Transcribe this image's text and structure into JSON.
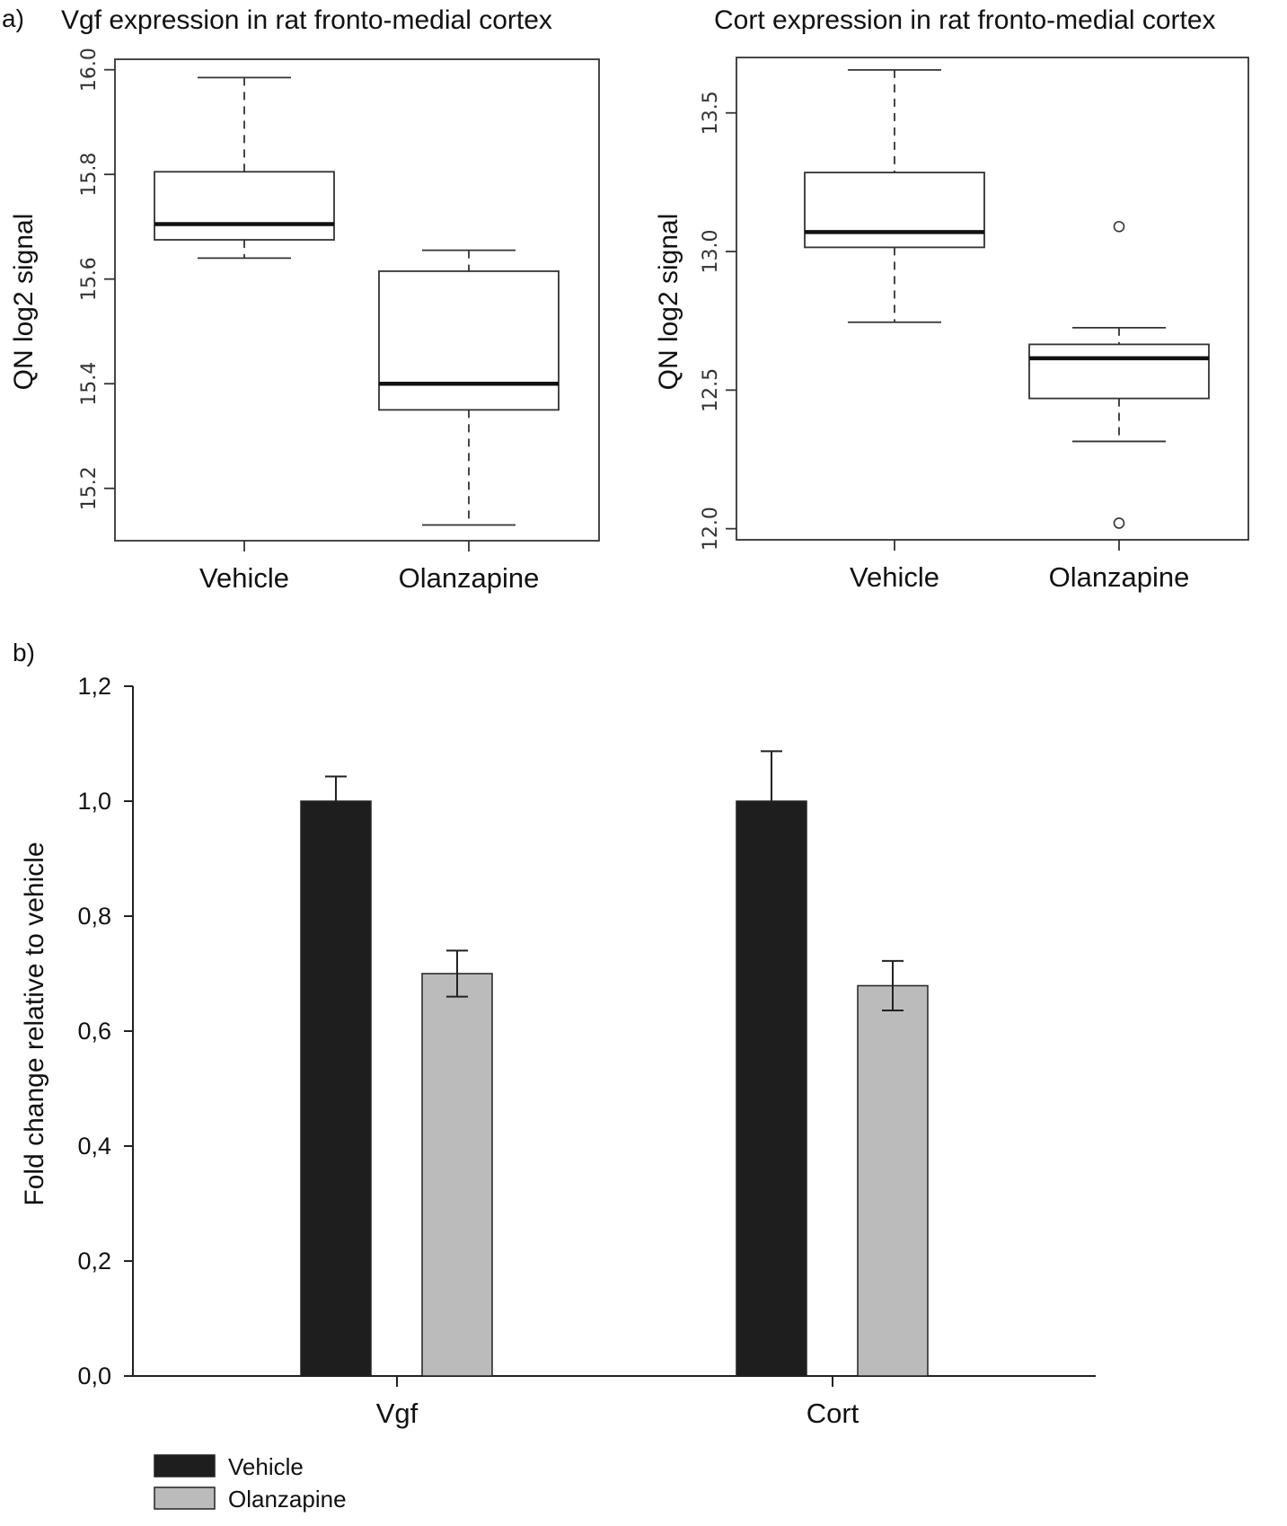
{
  "panel_labels": {
    "a": "a)",
    "b": "b)"
  },
  "colors": {
    "vehicle": "#1e1e1e",
    "olanzapine": "#bbbbbb",
    "axis": "#222222"
  },
  "chart_data": [
    {
      "type": "box",
      "id": "vgf_box",
      "title": "Vgf expression in rat fronto-medial cortex",
      "ylabel": "QN log2 signal",
      "ylim": [
        15.1,
        16.02
      ],
      "yticks": [
        15.2,
        15.4,
        15.6,
        15.8,
        16.0
      ],
      "ytick_labels": [
        "15.2",
        "15.4",
        "15.6",
        "15.8",
        "16.0"
      ],
      "categories": [
        "Vehicle",
        "Olanzapine"
      ],
      "boxes": [
        {
          "name": "Vehicle",
          "whisker_low": 15.64,
          "q1": 15.675,
          "median": 15.705,
          "q3": 15.805,
          "whisker_high": 15.985,
          "outliers": []
        },
        {
          "name": "Olanzapine",
          "whisker_low": 15.13,
          "q1": 15.35,
          "median": 15.4,
          "q3": 15.615,
          "whisker_high": 15.655,
          "outliers": []
        }
      ]
    },
    {
      "type": "box",
      "id": "cort_box",
      "title": "Cort expression in rat fronto-medial cortex",
      "ylabel": "QN log2 signal",
      "ylim": [
        11.96,
        13.7
      ],
      "yticks": [
        12.0,
        12.5,
        13.0,
        13.5
      ],
      "ytick_labels": [
        "12.0",
        "12.5",
        "13.0",
        "13.5"
      ],
      "categories": [
        "Vehicle",
        "Olanzapine"
      ],
      "boxes": [
        {
          "name": "Vehicle",
          "whisker_low": 12.745,
          "q1": 13.015,
          "median": 13.07,
          "q3": 13.285,
          "whisker_high": 13.655,
          "outliers": []
        },
        {
          "name": "Olanzapine",
          "whisker_low": 12.315,
          "q1": 12.47,
          "median": 12.615,
          "q3": 12.665,
          "whisker_high": 12.725,
          "outliers": [
            13.09,
            12.02
          ]
        }
      ]
    },
    {
      "type": "bar",
      "id": "fold_bar",
      "title": "",
      "xlabel": "",
      "ylabel": "Fold change relative to vehicle",
      "ylim": [
        0,
        1.2
      ],
      "yticks": [
        0,
        0.2,
        0.4,
        0.6,
        0.8,
        1.0,
        1.2
      ],
      "ytick_labels": [
        "0,0",
        "0,2",
        "0,4",
        "0,6",
        "0,8",
        "1,0",
        "1,2"
      ],
      "categories": [
        "Vgf",
        "Cort"
      ],
      "series": [
        {
          "name": "Vehicle",
          "values": [
            1.0,
            1.0
          ],
          "errors": [
            0.043,
            0.087
          ]
        },
        {
          "name": "Olanzapine",
          "values": [
            0.7,
            0.679
          ],
          "errors": [
            0.04,
            0.043
          ]
        }
      ],
      "legend": {
        "position": "bottom-left",
        "entries": [
          "Vehicle",
          "Olanzapine"
        ]
      }
    }
  ]
}
